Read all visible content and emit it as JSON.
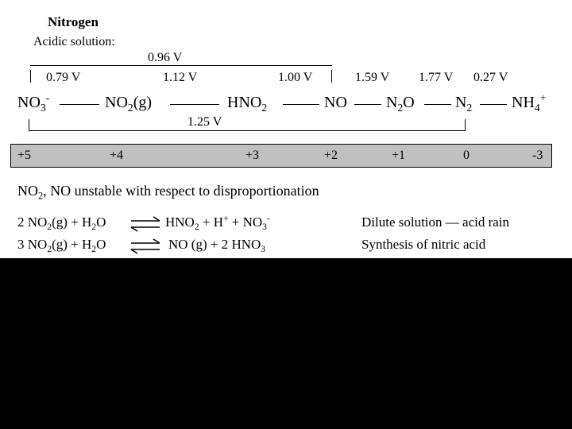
{
  "title": "Nitrogen",
  "subtitle": "Acidic solution:",
  "potentials": {
    "no3_no2_top": "0.96 V",
    "no3_no2": "0.79 V",
    "no2_hno2": "1.12 V",
    "hno2_no": "1.00 V",
    "no_n2o": "1.59 V",
    "n2o_n2": "1.77 V",
    "n2_nh4": "0.27 V",
    "no3_n2": "1.25 V"
  },
  "species": {
    "no3": {
      "base": "NO",
      "sub": "3",
      "sup": "-"
    },
    "no2g": {
      "base": "NO",
      "sub": "2",
      "tail": "(g)"
    },
    "hno2": {
      "base": "HNO",
      "sub": "2"
    },
    "no": {
      "base": "NO"
    },
    "n2o": {
      "base": "N",
      "sub": "2",
      "tail": "O"
    },
    "n2": {
      "base": "N",
      "sub": "2"
    },
    "nh4": {
      "base": "NH",
      "sub": "4",
      "sup": "+"
    }
  },
  "oxidation_states": [
    "+5",
    "+4",
    "+3",
    "+2",
    "+1",
    "0",
    "-3"
  ],
  "note": {
    "a": "NO",
    "sub": "2",
    "b": ", NO unstable with respect to disproportionation"
  },
  "reactions": [
    {
      "lhs": {
        "a": "2 NO",
        "s1": "2",
        "b": "(g) + H",
        "s2": "2",
        "c": "O"
      },
      "rhs": {
        "a": "HNO",
        "s1": "2",
        "b": " + H",
        "sup1": "+",
        "c": " + NO",
        "s2": "3",
        "sup2": "-"
      },
      "desc": "Dilute solution — acid rain"
    },
    {
      "lhs": {
        "a": "3 NO",
        "s1": "2",
        "b": "(g) + H",
        "s2": "2",
        "c": "O"
      },
      "rhs": {
        "a": "NO (g) + 2 HNO",
        "s1": "3"
      },
      "desc": "Synthesis of nitric acid"
    }
  ],
  "colors": {
    "background": "#ffffff",
    "footer": "#000000",
    "oxidation_bar": "#c0c0c0",
    "arrows": "#000000"
  }
}
